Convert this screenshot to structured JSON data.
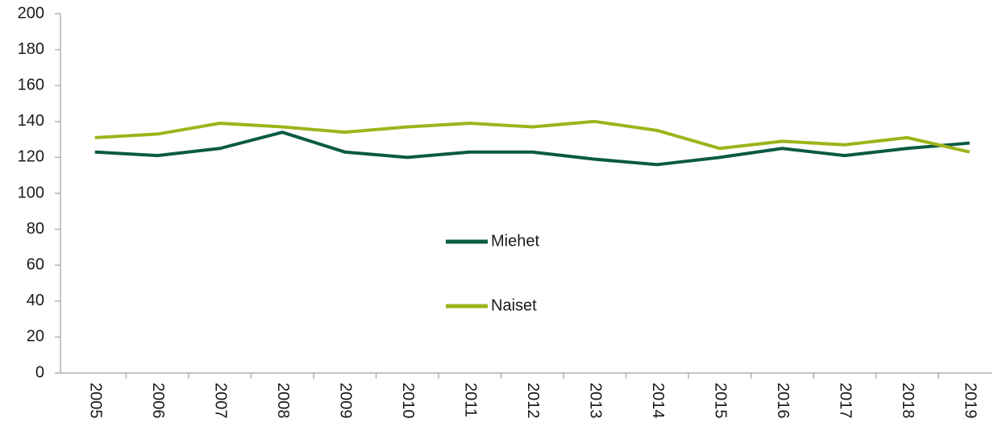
{
  "chart_data": {
    "type": "line",
    "categories": [
      "2005",
      "2006",
      "2007",
      "2008",
      "2009",
      "2010",
      "2011",
      "2012",
      "2013",
      "2014",
      "2015",
      "2016",
      "2017",
      "2018",
      "2019"
    ],
    "series": [
      {
        "name": "Miehet",
        "color": "#0b5a44",
        "values": [
          123,
          121,
          125,
          134,
          123,
          120,
          123,
          123,
          119,
          116,
          120,
          125,
          121,
          125,
          128
        ]
      },
      {
        "name": "Naiset",
        "color": "#9fb31a",
        "values": [
          131,
          133,
          139,
          137,
          134,
          137,
          139,
          137,
          140,
          135,
          125,
          129,
          127,
          131,
          123
        ]
      }
    ],
    "ylim": [
      0,
      200
    ],
    "yticks": [
      0,
      20,
      40,
      60,
      80,
      100,
      120,
      140,
      160,
      180,
      200
    ],
    "grid": false,
    "legend": "center"
  }
}
